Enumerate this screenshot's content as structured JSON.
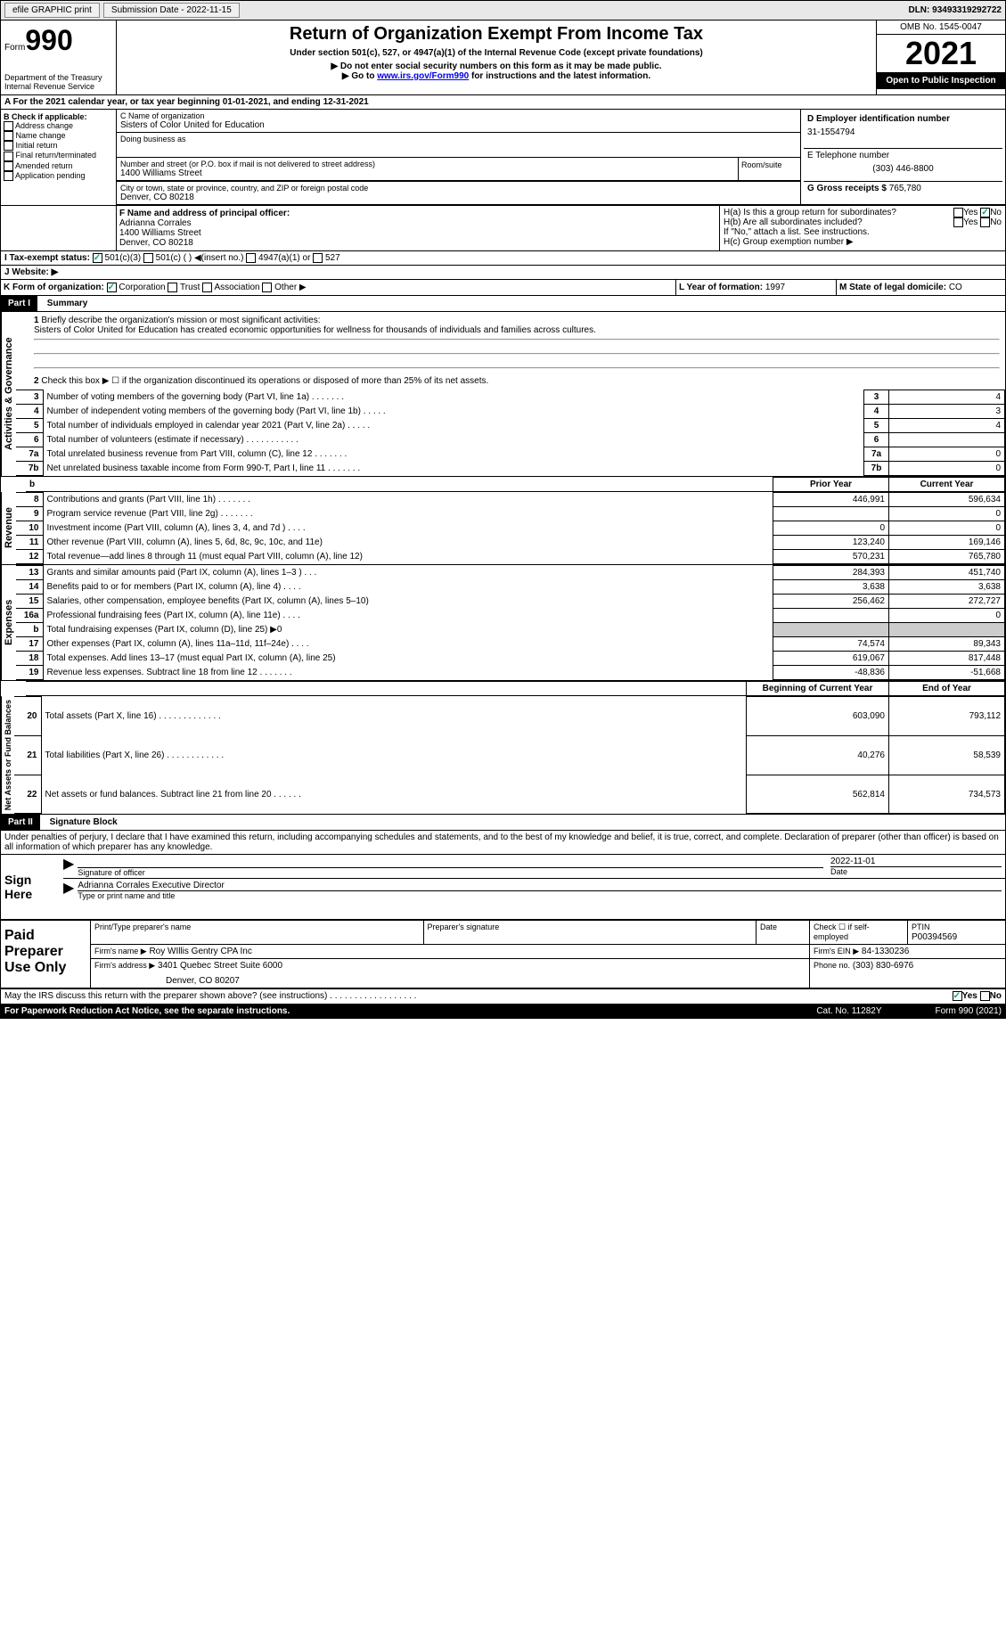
{
  "topbar": {
    "efile": "efile GRAPHIC print",
    "submission": "Submission Date - 2022-11-15",
    "dln": "DLN: 93493319292722"
  },
  "header": {
    "form": "Form",
    "form_number": "990",
    "title": "Return of Organization Exempt From Income Tax",
    "subtitle": "Under section 501(c), 527, or 4947(a)(1) of the Internal Revenue Code (except private foundations)",
    "warn1": "▶ Do not enter social security numbers on this form as it may be made public.",
    "warn2": "▶ Go to ",
    "warn2_link": "www.irs.gov/Form990",
    "warn2_after": " for instructions and the latest information.",
    "dept": "Department of the Treasury",
    "irs": "Internal Revenue Service",
    "omb": "OMB No. 1545-0047",
    "year": "2021",
    "open": "Open to Public Inspection"
  },
  "period": {
    "label": "For the 2021 calendar year, or tax year beginning ",
    "begin": "01-01-2021",
    "middle": ", and ending ",
    "end": "12-31-2021"
  },
  "boxB": {
    "label": "B Check if applicable:",
    "items": [
      "Address change",
      "Name change",
      "Initial return",
      "Final return/terminated",
      "Amended return",
      "Application pending"
    ]
  },
  "boxC": {
    "label_name": "C Name of organization",
    "org_name": "Sisters of Color United for Education",
    "dba": "Doing business as",
    "addr_label": "Number and street (or P.O. box if mail is not delivered to street address)",
    "addr": "1400 Williams Street",
    "room": "Room/suite",
    "city_label": "City or town, state or province, country, and ZIP or foreign postal code",
    "city": "Denver, CO  80218"
  },
  "boxD": {
    "label": "D Employer identification number",
    "value": "31-1554794"
  },
  "boxE": {
    "label": "E Telephone number",
    "value": "(303) 446-8800"
  },
  "boxG": {
    "label": "G Gross receipts $",
    "value": "765,780"
  },
  "boxF": {
    "label": "F Name and address of principal officer:",
    "name": "Adrianna Corrales",
    "addr": "1400 Williams Street",
    "city": "Denver, CO  80218"
  },
  "boxH": {
    "a_label": "H(a)  Is this a group return for subordinates?",
    "b_label": "H(b)  Are all subordinates included?",
    "b_note": "If \"No,\" attach a list. See instructions.",
    "c_label": "H(c)  Group exemption number ▶",
    "yes": "Yes",
    "no": "No"
  },
  "boxI": {
    "label": "I   Tax-exempt status:",
    "opts": [
      "501(c)(3)",
      "501(c) (  ) ◀(insert no.)",
      "4947(a)(1) or",
      "527"
    ]
  },
  "boxJ": {
    "label": "J   Website: ▶"
  },
  "boxK": {
    "label": "K Form of organization:",
    "opts": [
      "Corporation",
      "Trust",
      "Association",
      "Other ▶"
    ]
  },
  "boxL": {
    "label": "L Year of formation:",
    "value": "1997"
  },
  "boxM": {
    "label": "M State of legal domicile:",
    "value": "CO"
  },
  "part1": {
    "header": "Part I",
    "title": "Summary",
    "line1_label": "Briefly describe the organization's mission or most significant activities:",
    "line1_text": "Sisters of Color United for Education has created economic opportunities for wellness for thousands of individuals and families across cultures.",
    "line2": "Check this box ▶ ☐ if the organization discontinued its operations or disposed of more than 25% of its net assets.",
    "sections": {
      "activities": "Activities & Governance",
      "revenue": "Revenue",
      "expenses": "Expenses",
      "netassets": "Net Assets or Fund Balances"
    },
    "governance_lines": [
      {
        "n": "3",
        "label": "Number of voting members of the governing body (Part VI, line 1a)   .    .    .    .    .    .    .",
        "val": "4"
      },
      {
        "n": "4",
        "label": "Number of independent voting members of the governing body (Part VI, line 1b)   .    .    .    .    .",
        "val": "3"
      },
      {
        "n": "5",
        "label": "Total number of individuals employed in calendar year 2021 (Part V, line 2a)   .    .    .    .    .",
        "val": "4"
      },
      {
        "n": "6",
        "label": "Total number of volunteers (estimate if necessary)   .    .    .    .    .    .    .    .    .    .    .",
        "val": ""
      },
      {
        "n": "7a",
        "label": "Total unrelated business revenue from Part VIII, column (C), line 12   .    .    .    .    .    .    .",
        "val": "0"
      },
      {
        "n": "7b",
        "label": "Net unrelated business taxable income from Form 990-T, Part I, line 11   .    .    .    .    .    .    .",
        "val": "0"
      }
    ],
    "col_headers": {
      "prior": "Prior Year",
      "current": "Current Year",
      "boy": "Beginning of Current Year",
      "eoy": "End of Year"
    },
    "revenue_lines": [
      {
        "n": "8",
        "label": "Contributions and grants (Part VIII, line 1h)   .    .    .    .    .    .    .",
        "prior": "446,991",
        "current": "596,634"
      },
      {
        "n": "9",
        "label": "Program service revenue (Part VIII, line 2g)   .    .    .    .    .    .    .",
        "prior": "",
        "current": "0"
      },
      {
        "n": "10",
        "label": "Investment income (Part VIII, column (A), lines 3, 4, and 7d )   .    .    .    .",
        "prior": "0",
        "current": "0"
      },
      {
        "n": "11",
        "label": "Other revenue (Part VIII, column (A), lines 5, 6d, 8c, 9c, 10c, and 11e)",
        "prior": "123,240",
        "current": "169,146"
      },
      {
        "n": "12",
        "label": "Total revenue—add lines 8 through 11 (must equal Part VIII, column (A), line 12)",
        "prior": "570,231",
        "current": "765,780"
      }
    ],
    "expense_lines": [
      {
        "n": "13",
        "label": "Grants and similar amounts paid (Part IX, column (A), lines 1–3 )   .    .    .",
        "prior": "284,393",
        "current": "451,740"
      },
      {
        "n": "14",
        "label": "Benefits paid to or for members (Part IX, column (A), line 4)   .    .    .    .",
        "prior": "3,638",
        "current": "3,638"
      },
      {
        "n": "15",
        "label": "Salaries, other compensation, employee benefits (Part IX, column (A), lines 5–10)",
        "prior": "256,462",
        "current": "272,727"
      },
      {
        "n": "16a",
        "label": "Professional fundraising fees (Part IX, column (A), line 11e)   .    .    .    .",
        "prior": "",
        "current": "0"
      },
      {
        "n": "b",
        "label": "Total fundraising expenses (Part IX, column (D), line 25) ▶0",
        "shaded": true
      },
      {
        "n": "17",
        "label": "Other expenses (Part IX, column (A), lines 11a–11d, 11f–24e)   .    .    .    .",
        "prior": "74,574",
        "current": "89,343"
      },
      {
        "n": "18",
        "label": "Total expenses. Add lines 13–17 (must equal Part IX, column (A), line 25)",
        "prior": "619,067",
        "current": "817,448"
      },
      {
        "n": "19",
        "label": "Revenue less expenses. Subtract line 18 from line 12   .    .    .    .    .    .    .",
        "prior": "-48,836",
        "current": "-51,668"
      }
    ],
    "balance_lines": [
      {
        "n": "20",
        "label": "Total assets (Part X, line 16)   .    .    .    .    .    .    .    .    .    .    .    .    .",
        "prior": "603,090",
        "current": "793,112"
      },
      {
        "n": "21",
        "label": "Total liabilities (Part X, line 26)   .    .    .    .    .    .    .    .    .    .    .    .",
        "prior": "40,276",
        "current": "58,539"
      },
      {
        "n": "22",
        "label": "Net assets or fund balances. Subtract line 21 from line 20   .    .    .    .    .    .",
        "prior": "562,814",
        "current": "734,573"
      }
    ]
  },
  "part2": {
    "header": "Part II",
    "title": "Signature Block",
    "penalty": "Under penalties of perjury, I declare that I have examined this return, including accompanying schedules and statements, and to the best of my knowledge and belief, it is true, correct, and complete. Declaration of preparer (other than officer) is based on all information of which preparer has any knowledge.",
    "sign_here": "Sign Here",
    "sig_officer": "Signature of officer",
    "sig_date": "2022-11-01",
    "date_label": "Date",
    "sig_name": "Adrianna Corrales Executive Director",
    "sig_type": "Type or print name and title",
    "paid_prep": "Paid Preparer Use Only",
    "prep_name_label": "Print/Type preparer's name",
    "prep_sig_label": "Preparer's signature",
    "prep_date_label": "Date",
    "check_self": "Check ☐ if self-employed",
    "ptin_label": "PTIN",
    "ptin": "P00394569",
    "firm_name_label": "Firm's name    ▶",
    "firm_name": "Roy WIllis Gentry CPA Inc",
    "firm_ein_label": "Firm's EIN ▶",
    "firm_ein": "84-1330236",
    "firm_addr_label": "Firm's address ▶",
    "firm_addr": "3401 Quebec Street Suite 6000",
    "firm_city": "Denver, CO  80207",
    "phone_label": "Phone no.",
    "phone": "(303) 830-6976",
    "discuss": "May the IRS discuss this return with the preparer shown above? (see instructions)   .    .    .    .    .    .    .    .    .    .    .    .    .    .    .    .    .    .",
    "yes": "Yes",
    "no": "No"
  },
  "footer": {
    "paperwork": "For Paperwork Reduction Act Notice, see the separate instructions.",
    "cat": "Cat. No. 11282Y",
    "form": "Form 990 (2021)"
  }
}
